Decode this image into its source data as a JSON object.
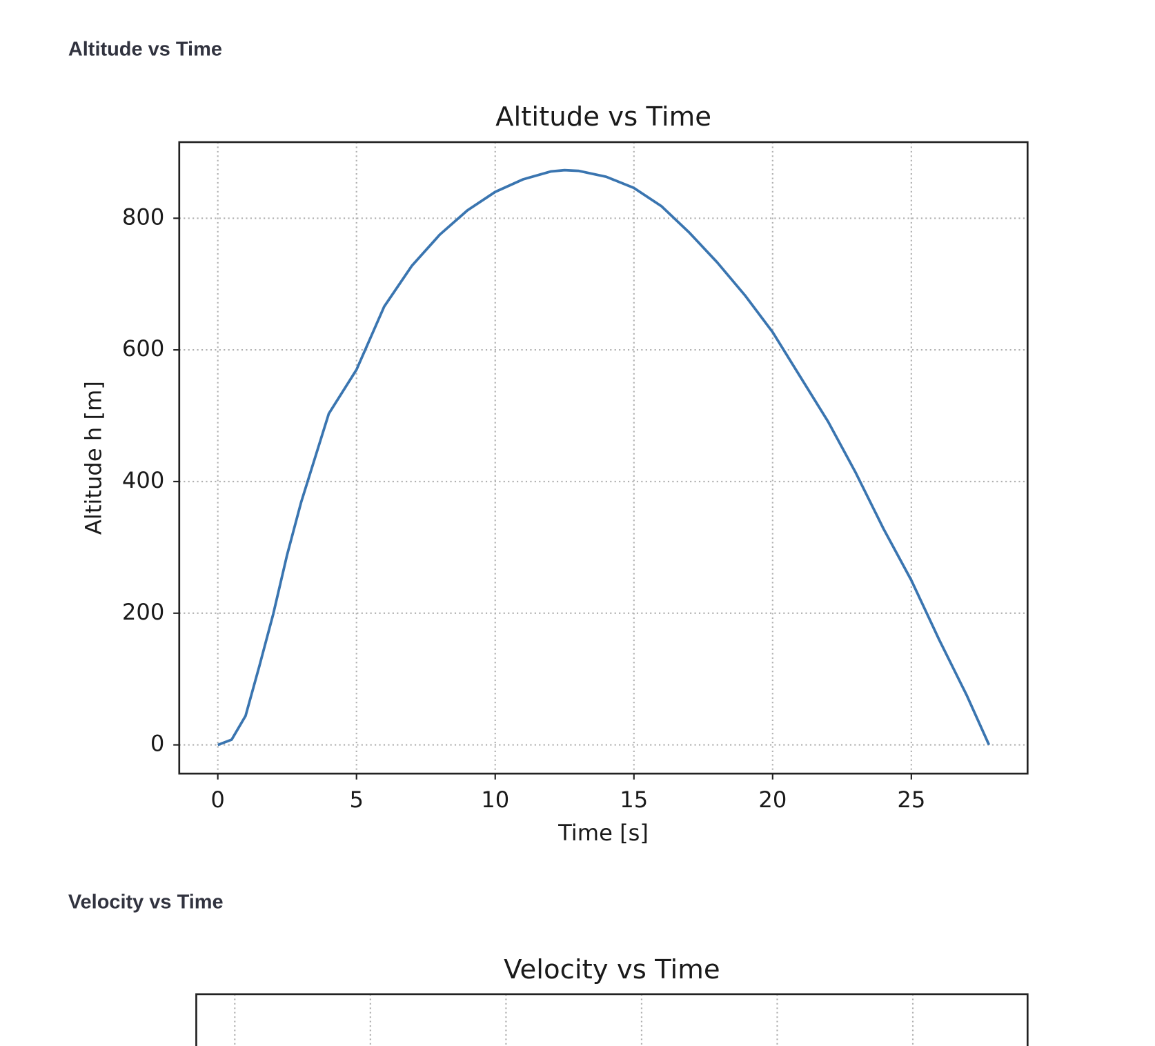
{
  "sections": [
    {
      "heading": "Altitude vs Time"
    },
    {
      "heading": "Velocity vs Time"
    }
  ],
  "chart_data": [
    {
      "type": "line",
      "title": "Altitude vs Time",
      "x_label": "Time [s]",
      "y_label": "Altitude h [m]",
      "x": [
        0,
        0.5,
        1,
        1.5,
        2,
        2.5,
        3,
        4,
        5,
        6,
        7,
        8,
        9,
        10,
        11,
        12,
        12.5,
        13,
        14,
        15,
        16,
        17,
        18,
        19,
        20,
        21,
        22,
        23,
        24,
        25,
        26,
        27,
        27.8
      ],
      "series": [
        {
          "name": "Altitude",
          "color": "#3a75b0",
          "values": [
            0,
            8,
            44,
            120,
            199,
            289,
            368,
            503,
            570,
            666,
            728,
            775,
            812,
            840,
            859,
            871,
            873,
            872,
            863,
            846,
            818,
            778,
            733,
            683,
            627,
            559,
            491,
            413,
            328,
            250,
            160,
            75,
            0
          ]
        }
      ],
      "xlim": [
        -1.39,
        29.19
      ],
      "ylim": [
        -43.6,
        915.6
      ],
      "xticks": [
        0,
        5,
        10,
        15,
        20,
        25
      ],
      "yticks": [
        0,
        200,
        400,
        600,
        800
      ],
      "grid": true
    },
    {
      "type": "line",
      "title": "Velocity vs Time",
      "xlim": [
        -1.42,
        29.23
      ],
      "xticks": [
        0,
        5,
        10,
        15,
        20,
        25
      ],
      "grid": true
    }
  ]
}
